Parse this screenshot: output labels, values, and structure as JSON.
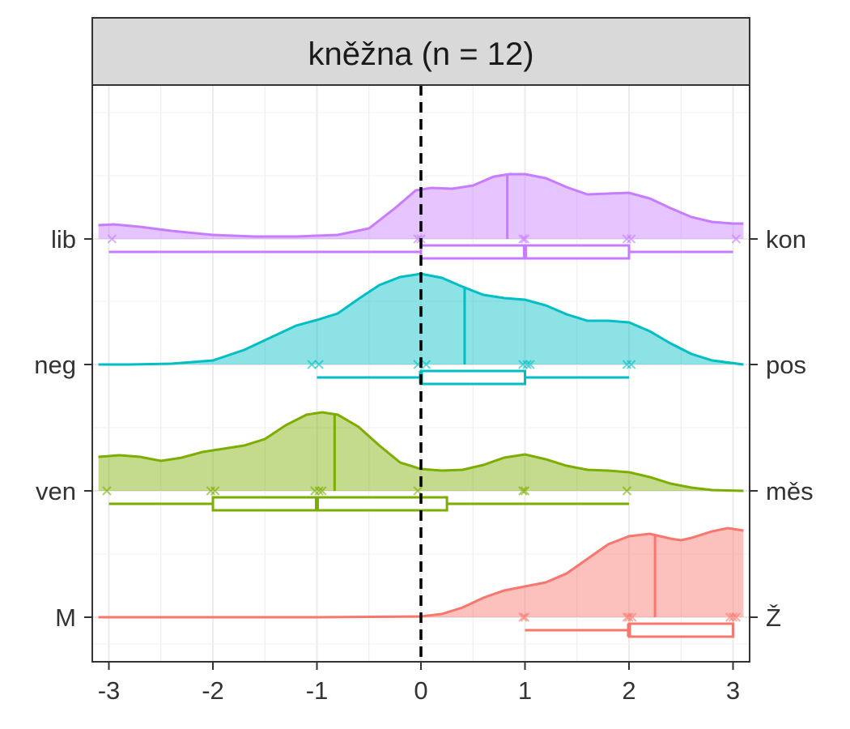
{
  "chart_data": {
    "type": "ridgeline",
    "title": "kněžna (n = 12)",
    "xlim": [
      -3.1,
      3.1
    ],
    "x_ticks": [
      "-3",
      "-2",
      "-1",
      "0",
      "1",
      "2",
      "3"
    ],
    "reference_line": {
      "x": 0,
      "style": "dashed"
    },
    "grid": true,
    "rows": [
      {
        "left_label": "lib",
        "right_label": "kon",
        "color": "#C77CFF",
        "observations": [
          -2.97,
          -0.03,
          0.0,
          0.98,
          1.0,
          1.98,
          2.02,
          3.03
        ],
        "mean": 0.83,
        "box": {
          "min": -3,
          "q1": 0,
          "median": 1,
          "q3": 2,
          "max": 3
        },
        "density": [
          [
            -3.1,
            0.17
          ],
          [
            -2.95,
            0.18
          ],
          [
            -2.7,
            0.15
          ],
          [
            -2.4,
            0.1
          ],
          [
            -2.0,
            0.05
          ],
          [
            -1.6,
            0.03
          ],
          [
            -1.2,
            0.03
          ],
          [
            -0.8,
            0.05
          ],
          [
            -0.5,
            0.13
          ],
          [
            -0.25,
            0.38
          ],
          [
            -0.05,
            0.6
          ],
          [
            0.1,
            0.63
          ],
          [
            0.3,
            0.62
          ],
          [
            0.5,
            0.66
          ],
          [
            0.7,
            0.77
          ],
          [
            0.85,
            0.8
          ],
          [
            1.0,
            0.8
          ],
          [
            1.2,
            0.75
          ],
          [
            1.4,
            0.64
          ],
          [
            1.6,
            0.55
          ],
          [
            1.8,
            0.56
          ],
          [
            2.0,
            0.57
          ],
          [
            2.2,
            0.5
          ],
          [
            2.4,
            0.38
          ],
          [
            2.6,
            0.27
          ],
          [
            2.8,
            0.21
          ],
          [
            3.0,
            0.19
          ],
          [
            3.1,
            0.19
          ]
        ]
      },
      {
        "left_label": "neg",
        "right_label": "pos",
        "color": "#00BFC4",
        "observations": [
          -1.05,
          -0.98,
          -0.03,
          0.05,
          0.98,
          1.02,
          1.05,
          1.98,
          2.02
        ],
        "mean": 0.42,
        "box": {
          "min": -1,
          "q1": 0,
          "median": 0,
          "q3": 1,
          "max": 2
        },
        "density": [
          [
            -3.1,
            0.0
          ],
          [
            -2.8,
            0.0
          ],
          [
            -2.4,
            0.01
          ],
          [
            -2.0,
            0.05
          ],
          [
            -1.7,
            0.18
          ],
          [
            -1.4,
            0.36
          ],
          [
            -1.2,
            0.48
          ],
          [
            -1.0,
            0.55
          ],
          [
            -0.8,
            0.63
          ],
          [
            -0.6,
            0.81
          ],
          [
            -0.4,
            0.98
          ],
          [
            -0.2,
            1.08
          ],
          [
            0.0,
            1.12
          ],
          [
            0.2,
            1.07
          ],
          [
            0.4,
            0.96
          ],
          [
            0.6,
            0.86
          ],
          [
            0.8,
            0.82
          ],
          [
            1.0,
            0.8
          ],
          [
            1.2,
            0.73
          ],
          [
            1.4,
            0.62
          ],
          [
            1.6,
            0.54
          ],
          [
            1.8,
            0.54
          ],
          [
            2.0,
            0.52
          ],
          [
            2.2,
            0.41
          ],
          [
            2.4,
            0.26
          ],
          [
            2.6,
            0.13
          ],
          [
            2.8,
            0.05
          ],
          [
            3.1,
            0.0
          ]
        ]
      },
      {
        "left_label": "ven",
        "right_label": "měs",
        "color": "#7CAE00",
        "observations": [
          -3.02,
          -2.02,
          -1.98,
          -1.02,
          -0.98,
          -0.95,
          -0.03,
          0.98,
          1.0,
          1.98
        ],
        "mean": -0.83,
        "box": {
          "min": -3,
          "q1": -2,
          "median": -1,
          "q3": 0.25,
          "max": 2
        },
        "density": [
          [
            -3.1,
            0.42
          ],
          [
            -2.9,
            0.44
          ],
          [
            -2.7,
            0.42
          ],
          [
            -2.5,
            0.37
          ],
          [
            -2.3,
            0.41
          ],
          [
            -2.1,
            0.48
          ],
          [
            -1.9,
            0.52
          ],
          [
            -1.7,
            0.56
          ],
          [
            -1.5,
            0.64
          ],
          [
            -1.3,
            0.81
          ],
          [
            -1.1,
            0.94
          ],
          [
            -0.95,
            0.97
          ],
          [
            -0.8,
            0.94
          ],
          [
            -0.6,
            0.79
          ],
          [
            -0.4,
            0.56
          ],
          [
            -0.2,
            0.35
          ],
          [
            0.0,
            0.27
          ],
          [
            0.2,
            0.25
          ],
          [
            0.4,
            0.26
          ],
          [
            0.6,
            0.32
          ],
          [
            0.8,
            0.41
          ],
          [
            1.0,
            0.45
          ],
          [
            1.2,
            0.39
          ],
          [
            1.4,
            0.31
          ],
          [
            1.6,
            0.26
          ],
          [
            1.8,
            0.25
          ],
          [
            2.0,
            0.23
          ],
          [
            2.2,
            0.17
          ],
          [
            2.4,
            0.09
          ],
          [
            2.6,
            0.04
          ],
          [
            2.8,
            0.01
          ],
          [
            3.1,
            0.0
          ]
        ]
      },
      {
        "left_label": "M",
        "right_label": "Ž",
        "color": "#F8766D",
        "observations": [
          0.98,
          1.0,
          1.98,
          2.0,
          2.03,
          2.97,
          3.0,
          3.03
        ],
        "mean": 2.25,
        "box": {
          "min": 1,
          "q1": 2,
          "median": 2,
          "q3": 3,
          "max": 3
        },
        "density": [
          [
            -3.1,
            0.0
          ],
          [
            -1.0,
            0.0
          ],
          [
            0.0,
            0.01
          ],
          [
            0.2,
            0.04
          ],
          [
            0.4,
            0.12
          ],
          [
            0.6,
            0.24
          ],
          [
            0.8,
            0.33
          ],
          [
            1.0,
            0.38
          ],
          [
            1.2,
            0.43
          ],
          [
            1.4,
            0.54
          ],
          [
            1.6,
            0.72
          ],
          [
            1.8,
            0.9
          ],
          [
            2.0,
            1.0
          ],
          [
            2.2,
            1.03
          ],
          [
            2.4,
            0.97
          ],
          [
            2.5,
            0.95
          ],
          [
            2.6,
            0.98
          ],
          [
            2.8,
            1.06
          ],
          [
            2.95,
            1.1
          ],
          [
            3.1,
            1.07
          ]
        ]
      }
    ]
  }
}
